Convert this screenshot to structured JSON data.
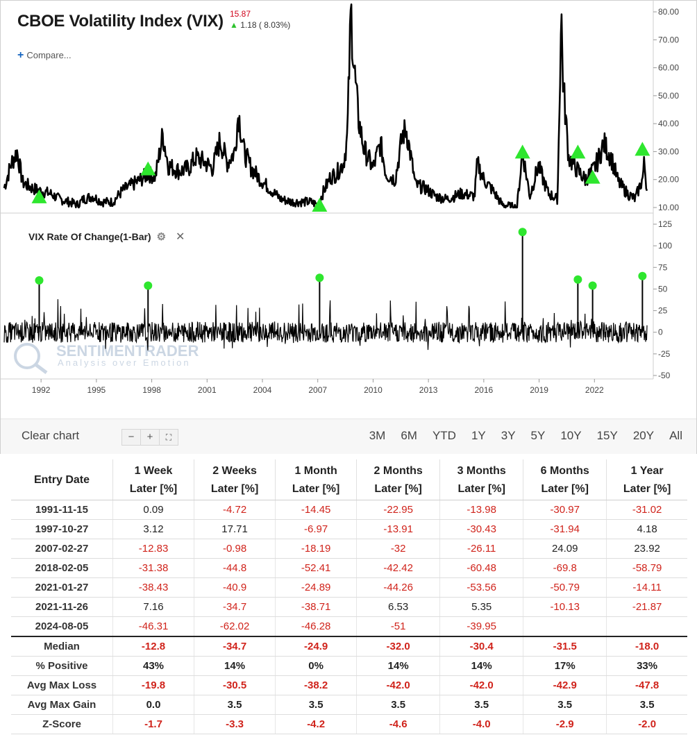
{
  "header": {
    "title": "CBOE Volatility Index (VIX)",
    "price": "15.87",
    "change": "1.18 ( 8.03%)",
    "compare_label": "Compare..."
  },
  "indicator": {
    "title": "VIX Rate Of Change(1-Bar)"
  },
  "watermark": {
    "brand": "SENTIMENTRADER",
    "tagline": "Analysis over Emotion"
  },
  "toolbar": {
    "clear_label": "Clear chart",
    "zoom_out": "−",
    "zoom_in": "+",
    "fullscreen": "⛶",
    "ranges": [
      "3M",
      "6M",
      "YTD",
      "1Y",
      "3Y",
      "5Y",
      "10Y",
      "15Y",
      "20Y",
      "All"
    ]
  },
  "colors": {
    "line": "#000000",
    "marker": "#2ee62e",
    "negative": "#d0231b"
  },
  "chart_data": [
    {
      "type": "line",
      "title": "CBOE Volatility Index (VIX)",
      "x_ticks": [
        1992,
        1995,
        1998,
        2001,
        2004,
        2007,
        2010,
        2013,
        2016,
        2019,
        2022
      ],
      "xlim": [
        1990.0,
        2025.0
      ],
      "ylim": [
        9.5,
        82
      ],
      "y_ticks": [
        "10.00",
        "20.00",
        "30.00",
        "40.00",
        "50.00",
        "60.00",
        "70.00",
        "80.00"
      ],
      "series": [
        {
          "x": [
            1990.0,
            1990.4,
            1990.7,
            1991.0,
            1991.5,
            1991.9,
            1992.5,
            1993.0,
            1993.5,
            1994.0,
            1994.3,
            1994.8,
            1995.3,
            1995.9,
            1996.4,
            1996.9,
            1997.4,
            1997.8,
            1998.2,
            1998.6,
            1998.9,
            1999.5,
            2000.0,
            2000.4,
            2000.9,
            2001.3,
            2001.7,
            2002.1,
            2002.5,
            2002.7,
            2003.0,
            2003.4,
            2003.9,
            2004.5,
            2005.0,
            2005.6,
            2006.1,
            2006.6,
            2007.0,
            2007.4,
            2007.7,
            2008.0,
            2008.4,
            2008.6,
            2008.8,
            2008.95,
            2009.2,
            2009.5,
            2010.0,
            2010.4,
            2010.7,
            2011.2,
            2011.6,
            2011.8,
            2012.3,
            2012.8,
            2013.4,
            2014.0,
            2014.8,
            2015.5,
            2015.65,
            2016.0,
            2016.5,
            2017.0,
            2017.8,
            2018.1,
            2018.5,
            2018.95,
            2019.5,
            2020.0,
            2020.2,
            2020.3,
            2020.6,
            2021.0,
            2021.5,
            2021.9,
            2022.2,
            2022.5,
            2022.9,
            2023.3,
            2023.8,
            2024.2,
            2024.6,
            2024.7,
            2024.85
          ],
          "y": [
            17,
            26,
            30,
            19,
            17,
            16,
            15,
            13,
            12,
            11,
            13,
            14,
            12,
            12,
            16,
            18,
            20,
            22,
            21,
            36,
            25,
            23,
            24,
            28,
            26,
            24,
            34,
            26,
            30,
            44,
            30,
            24,
            20,
            16,
            13,
            12,
            12,
            12,
            11,
            17,
            21,
            22,
            26,
            35,
            81,
            62,
            42,
            31,
            24,
            33,
            22,
            20,
            36,
            38,
            18,
            17,
            14,
            13,
            15,
            14,
            26,
            20,
            16,
            11,
            10,
            30,
            14,
            25,
            15,
            13,
            80,
            55,
            28,
            24,
            20,
            23,
            27,
            33,
            28,
            19,
            15,
            13,
            20,
            26,
            16
          ]
        }
      ],
      "markers": [
        {
          "x": 1991.9,
          "y": 14
        },
        {
          "x": 1997.8,
          "y": 24
        },
        {
          "x": 2007.1,
          "y": 11
        },
        {
          "x": 2018.1,
          "y": 30
        },
        {
          "x": 2021.1,
          "y": 30
        },
        {
          "x": 2021.9,
          "y": 21
        },
        {
          "x": 2024.6,
          "y": 31
        }
      ]
    },
    {
      "type": "line",
      "title": "VIX Rate Of Change(1-Bar)",
      "xlim": [
        1990.0,
        2025.0
      ],
      "ylim": [
        -50,
        125
      ],
      "y_ticks": [
        "-50",
        "-25",
        "0",
        "25",
        "50",
        "75",
        "100",
        "125"
      ],
      "spikes": [
        {
          "x": 1991.9,
          "y": 60
        },
        {
          "x": 1997.8,
          "y": 54
        },
        {
          "x": 2007.1,
          "y": 63
        },
        {
          "x": 2018.1,
          "y": 116
        },
        {
          "x": 2021.1,
          "y": 61
        },
        {
          "x": 2021.9,
          "y": 54
        },
        {
          "x": 2024.6,
          "y": 65
        }
      ]
    },
    {
      "type": "table",
      "columns": [
        {
          "top": "Entry Date",
          "bottom": ""
        },
        {
          "top": "1 Week",
          "bottom": "Later [%]"
        },
        {
          "top": "2 Weeks",
          "bottom": "Later [%]"
        },
        {
          "top": "1 Month",
          "bottom": "Later [%]"
        },
        {
          "top": "2 Months",
          "bottom": "Later [%]"
        },
        {
          "top": "3 Months",
          "bottom": "Later [%]"
        },
        {
          "top": "6 Months",
          "bottom": "Later [%]"
        },
        {
          "top": "1 Year",
          "bottom": "Later [%]"
        }
      ],
      "rows": [
        [
          "1991-11-15",
          "0.09",
          "-4.72",
          "-14.45",
          "-22.95",
          "-13.98",
          "-30.97",
          "-31.02"
        ],
        [
          "1997-10-27",
          "3.12",
          "17.71",
          "-6.97",
          "-13.91",
          "-30.43",
          "-31.94",
          "4.18"
        ],
        [
          "2007-02-27",
          "-12.83",
          "-0.98",
          "-18.19",
          "-32",
          "-26.11",
          "24.09",
          "23.92"
        ],
        [
          "2018-02-05",
          "-31.38",
          "-44.8",
          "-52.41",
          "-42.42",
          "-60.48",
          "-69.8",
          "-58.79"
        ],
        [
          "2021-01-27",
          "-38.43",
          "-40.9",
          "-24.89",
          "-44.26",
          "-53.56",
          "-50.79",
          "-14.11"
        ],
        [
          "2021-11-26",
          "7.16",
          "-34.7",
          "-38.71",
          "6.53",
          "5.35",
          "-10.13",
          "-21.87"
        ],
        [
          "2024-08-05",
          "-46.31",
          "-62.02",
          "-46.28",
          "-51",
          "-39.95",
          "",
          ""
        ]
      ],
      "summary": [
        [
          "Median",
          "-12.8",
          "-34.7",
          "-24.9",
          "-32.0",
          "-30.4",
          "-31.5",
          "-18.0"
        ],
        [
          "% Positive",
          "43%",
          "14%",
          "0%",
          "14%",
          "14%",
          "17%",
          "33%"
        ],
        [
          "Avg Max Loss",
          "-19.8",
          "-30.5",
          "-38.2",
          "-42.0",
          "-42.0",
          "-42.9",
          "-47.8"
        ],
        [
          "Avg Max Gain",
          "0.0",
          "3.5",
          "3.5",
          "3.5",
          "3.5",
          "3.5",
          "3.5"
        ],
        [
          "Z-Score",
          "-1.7",
          "-3.3",
          "-4.2",
          "-4.6",
          "-4.0",
          "-2.9",
          "-2.0"
        ]
      ]
    }
  ]
}
